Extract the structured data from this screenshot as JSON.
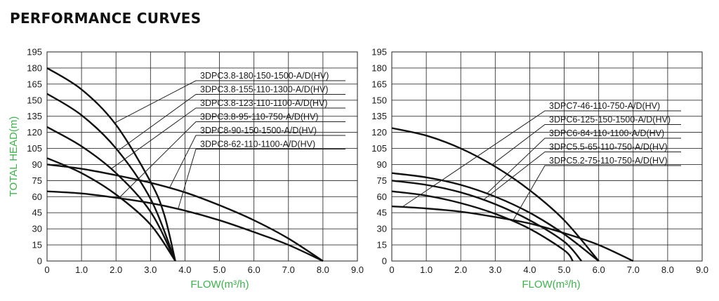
{
  "page_title": "PERFORMANCE CURVES",
  "colors": {
    "axis_label": "#3cb44b",
    "curve": "#111111",
    "grid": "#333333"
  },
  "chart_data": [
    {
      "type": "line",
      "xlabel": "FLOW(m³/h)",
      "ylabel": "TOTAL HEAD(m)",
      "xlim": [
        0,
        9
      ],
      "ylim": [
        0,
        195
      ],
      "xticks": [
        "0",
        "1.0",
        "2.0",
        "3.0",
        "4.0",
        "5.0",
        "6.0",
        "7.0",
        "8.0",
        "9.0"
      ],
      "yticks": [
        "0",
        "15",
        "30",
        "45",
        "60",
        "75",
        "90",
        "105",
        "120",
        "135",
        "150",
        "165",
        "180",
        "195"
      ],
      "grid": true,
      "series": [
        {
          "name": "3DPC3.8-180-150-1500-A/D(HV)",
          "x": [
            0,
            1,
            2,
            3,
            3.4,
            3.72
          ],
          "y": [
            180,
            160,
            127,
            74,
            43,
            0
          ]
        },
        {
          "name": "3DPC3.8-155-110-1300-A/D(HV)",
          "x": [
            0,
            1,
            2,
            3,
            3.72
          ],
          "y": [
            156,
            136,
            105,
            58,
            0
          ]
        },
        {
          "name": "3DPC3.8-123-110-1100-A/D(HV)",
          "x": [
            0,
            1,
            2,
            3,
            3.72
          ],
          "y": [
            125,
            107,
            82,
            46,
            0
          ]
        },
        {
          "name": "3DPC3.8-95-110-750-A/D(HV)",
          "x": [
            0,
            1,
            2,
            3,
            3.72
          ],
          "y": [
            96,
            82,
            62,
            34,
            0
          ]
        },
        {
          "name": "3DPC8-90-150-1500-A/D(HV)",
          "x": [
            0,
            1,
            2,
            3,
            4,
            5,
            6,
            7,
            8
          ],
          "y": [
            90,
            86,
            80,
            73,
            64,
            52,
            38,
            21,
            0
          ]
        },
        {
          "name": "3DPC8-62-110-1100-A/D(HV)",
          "x": [
            0,
            1,
            2,
            3,
            4,
            5,
            6,
            7,
            8
          ],
          "y": [
            65,
            63,
            59,
            54,
            47,
            38,
            27,
            15,
            0
          ]
        }
      ],
      "annotations": [
        {
          "text": "3DPC3.8-180-150-1500-A/D(HV)",
          "series": 0,
          "at_x": 1.95
        },
        {
          "text": "3DPC3.8-155-110-1300-A/D(HV)",
          "series": 1,
          "at_x": 2.05
        },
        {
          "text": "3DPC3.8-123-110-1100-A/D(HV)",
          "series": 2,
          "at_x": 1.85
        },
        {
          "text": "3DPC3.8-95-110-750-A/D(HV)",
          "series": 3,
          "at_x": 2.1
        },
        {
          "text": "3DPC8-90-150-1500-A/D(HV)",
          "series": 4,
          "at_x": 3.55
        },
        {
          "text": "3DPC8-62-110-1100-A/D(HV)",
          "series": 5,
          "at_x": 3.8
        }
      ]
    },
    {
      "type": "line",
      "xlabel": "FLOW(m³/h)",
      "ylabel": "",
      "xlim": [
        0,
        9
      ],
      "ylim": [
        0,
        195
      ],
      "xticks": [
        "0",
        "1.0",
        "2.0",
        "3.0",
        "4.0",
        "5.0",
        "6.0",
        "7.0",
        "8.0",
        "9.0"
      ],
      "yticks": [
        "0",
        "15",
        "30",
        "45",
        "60",
        "75",
        "90",
        "105",
        "120",
        "135",
        "150",
        "165",
        "180",
        "195"
      ],
      "grid": true,
      "series": [
        {
          "name": "3DPC7-46-110-750-A/D(HV)",
          "x": [
            0,
            1,
            2,
            3,
            4,
            5,
            6,
            7
          ],
          "y": [
            51,
            49,
            46,
            41,
            35,
            26,
            15,
            0
          ]
        },
        {
          "name": "3DPC6-125-150-1500-A/D(HV)",
          "x": [
            0,
            1,
            2,
            3,
            4,
            5,
            6
          ],
          "y": [
            124,
            117,
            105,
            88,
            66,
            38,
            0
          ]
        },
        {
          "name": "3DPC6-84-110-1100-A/D(HV)",
          "x": [
            0,
            1,
            2,
            3,
            4,
            5,
            6
          ],
          "y": [
            82,
            78,
            71,
            60,
            45,
            25,
            0
          ]
        },
        {
          "name": "3DPC5.5-65-110-750-A/D(HV)",
          "x": [
            0,
            1,
            2,
            3,
            4,
            5,
            5.5
          ],
          "y": [
            75,
            71,
            64,
            53,
            38,
            18,
            0
          ]
        },
        {
          "name": "3DPC5.2-75-110-750-A/D(HV)",
          "x": [
            0,
            1,
            2,
            3,
            4,
            5,
            5.25
          ],
          "y": [
            65,
            61,
            54,
            44,
            30,
            10,
            0
          ]
        }
      ],
      "annotations": [
        {
          "text": "3DPC7-46-110-750-A/D(HV)",
          "series": 0,
          "at_x": 0.3
        },
        {
          "text": "3DPC6-125-150-1500-A/D(HV)",
          "series": 1,
          "at_x": 2.9
        },
        {
          "text": "3DPC6-84-110-1100-A/D(HV)",
          "series": 2,
          "at_x": 2.75
        },
        {
          "text": "3DPC5.5-65-110-750-A/D(HV)",
          "series": 3,
          "at_x": 2.65
        },
        {
          "text": "3DPC5.2-75-110-750-A/D(HV)",
          "series": 4,
          "at_x": 3.5
        }
      ]
    }
  ]
}
